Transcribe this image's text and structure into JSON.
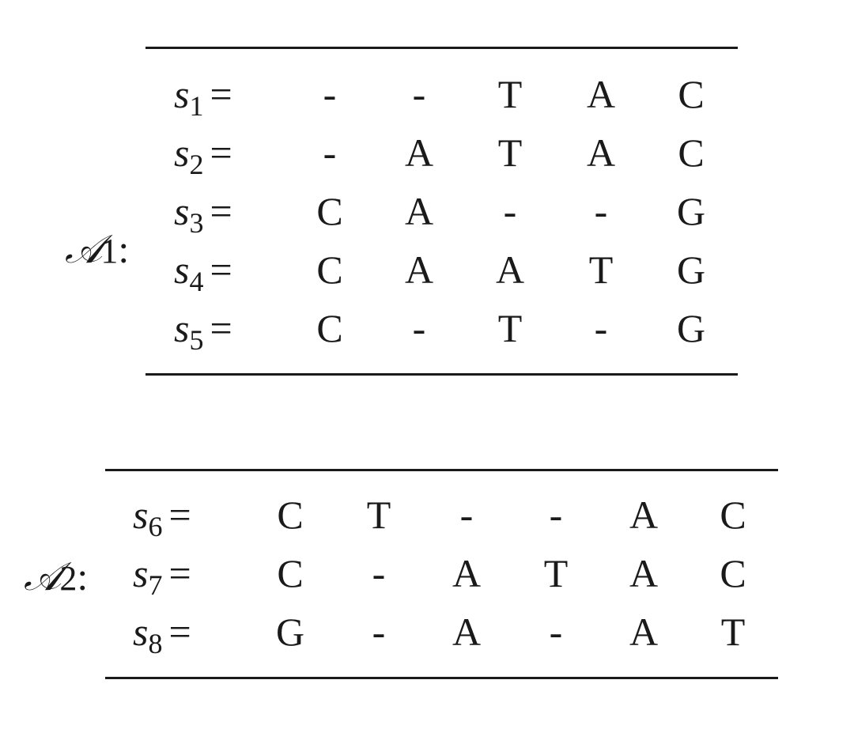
{
  "alignments": [
    {
      "label": "𝒜",
      "label_sub": "1",
      "label_colon": ":",
      "rows": [
        {
          "name": "s",
          "sub": "1",
          "eq": "=",
          "cells": [
            "-",
            "-",
            "T",
            "A",
            "C"
          ]
        },
        {
          "name": "s",
          "sub": "2",
          "eq": "=",
          "cells": [
            "-",
            "A",
            "T",
            "A",
            "C"
          ]
        },
        {
          "name": "s",
          "sub": "3",
          "eq": "=",
          "cells": [
            "C",
            "A",
            "-",
            "-",
            "G"
          ]
        },
        {
          "name": "s",
          "sub": "4",
          "eq": "=",
          "cells": [
            "C",
            "A",
            "A",
            "T",
            "G"
          ]
        },
        {
          "name": "s",
          "sub": "5",
          "eq": "=",
          "cells": [
            "C",
            "-",
            "T",
            "-",
            "G"
          ]
        }
      ]
    },
    {
      "label": "𝒜",
      "label_sub": "2",
      "label_colon": ":",
      "rows": [
        {
          "name": "s",
          "sub": "6",
          "eq": "=",
          "cells": [
            "C",
            "T",
            "-",
            "-",
            "A",
            "C"
          ]
        },
        {
          "name": "s",
          "sub": "7",
          "eq": "=",
          "cells": [
            "C",
            "-",
            "A",
            "T",
            "A",
            "C"
          ]
        },
        {
          "name": "s",
          "sub": "8",
          "eq": "=",
          "cells": [
            "G",
            "-",
            "A",
            "-",
            "A",
            "T"
          ]
        }
      ]
    }
  ]
}
